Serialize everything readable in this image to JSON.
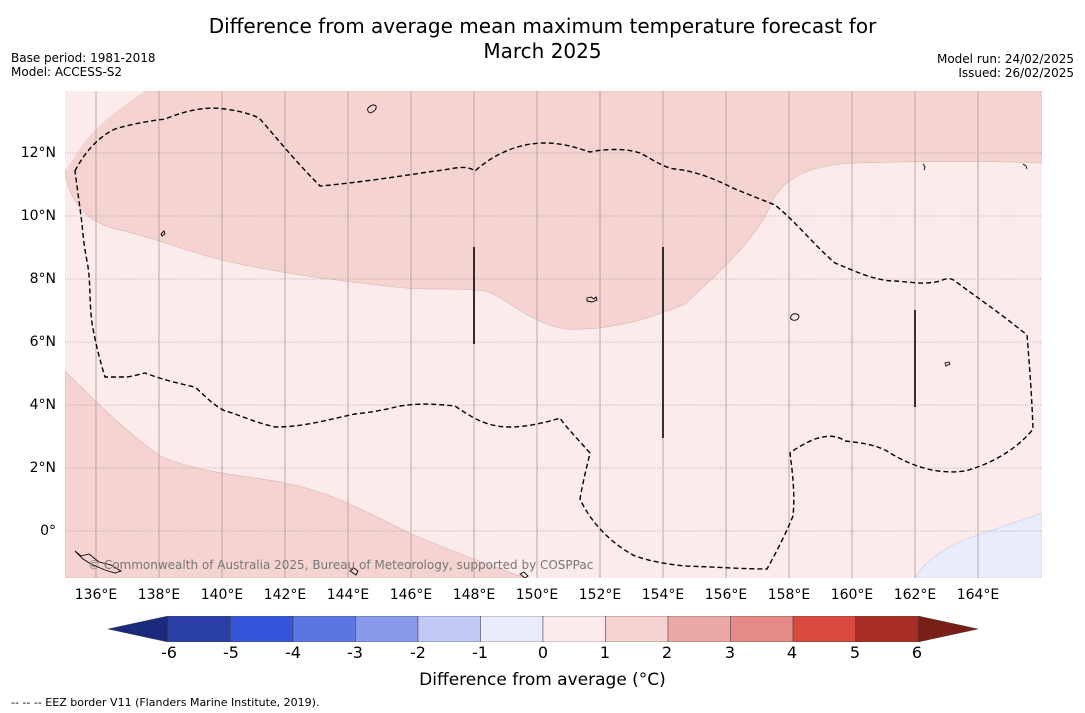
{
  "title_line1": "Difference from average mean maximum temperature forecast for",
  "title_line2": "March 2025",
  "base_period": "Base period: 1981-2018",
  "model": "Model: ACCESS-S2",
  "model_run": "Model run: 24/02/2025",
  "issued": "Issued: 26/02/2025",
  "lat_ticks": [
    "12°N",
    "10°N",
    "8°N",
    "6°N",
    "4°N",
    "2°N",
    "0°"
  ],
  "lon_ticks": [
    "136°E",
    "138°E",
    "140°E",
    "142°E",
    "144°E",
    "146°E",
    "148°E",
    "150°E",
    "152°E",
    "154°E",
    "156°E",
    "158°E",
    "160°E",
    "162°E",
    "164°E"
  ],
  "copyright": "© Commonwealth of Australia 2025, Bureau of Meteorology, supported by COSPPac",
  "colorbar": {
    "labels": [
      "-6",
      "-5",
      "-4",
      "-3",
      "-2",
      "-1",
      "0",
      "1",
      "2",
      "3",
      "4",
      "5",
      "6"
    ],
    "colors": [
      "#2a3fa8",
      "#3556dc",
      "#5b76e1",
      "#8899ea",
      "#c0c8f3",
      "#e9ecfb",
      "#fbebea",
      "#f4d3d1",
      "#eba9a5",
      "#e58a84",
      "#d84a40",
      "#a82d25"
    ],
    "under_color": "#1b2a7c",
    "over_color": "#7a1f17",
    "title": "Difference from average (°C)"
  },
  "footer": "--  --  -- EEZ border V11 (Flanders Marine Institute, 2019)."
}
